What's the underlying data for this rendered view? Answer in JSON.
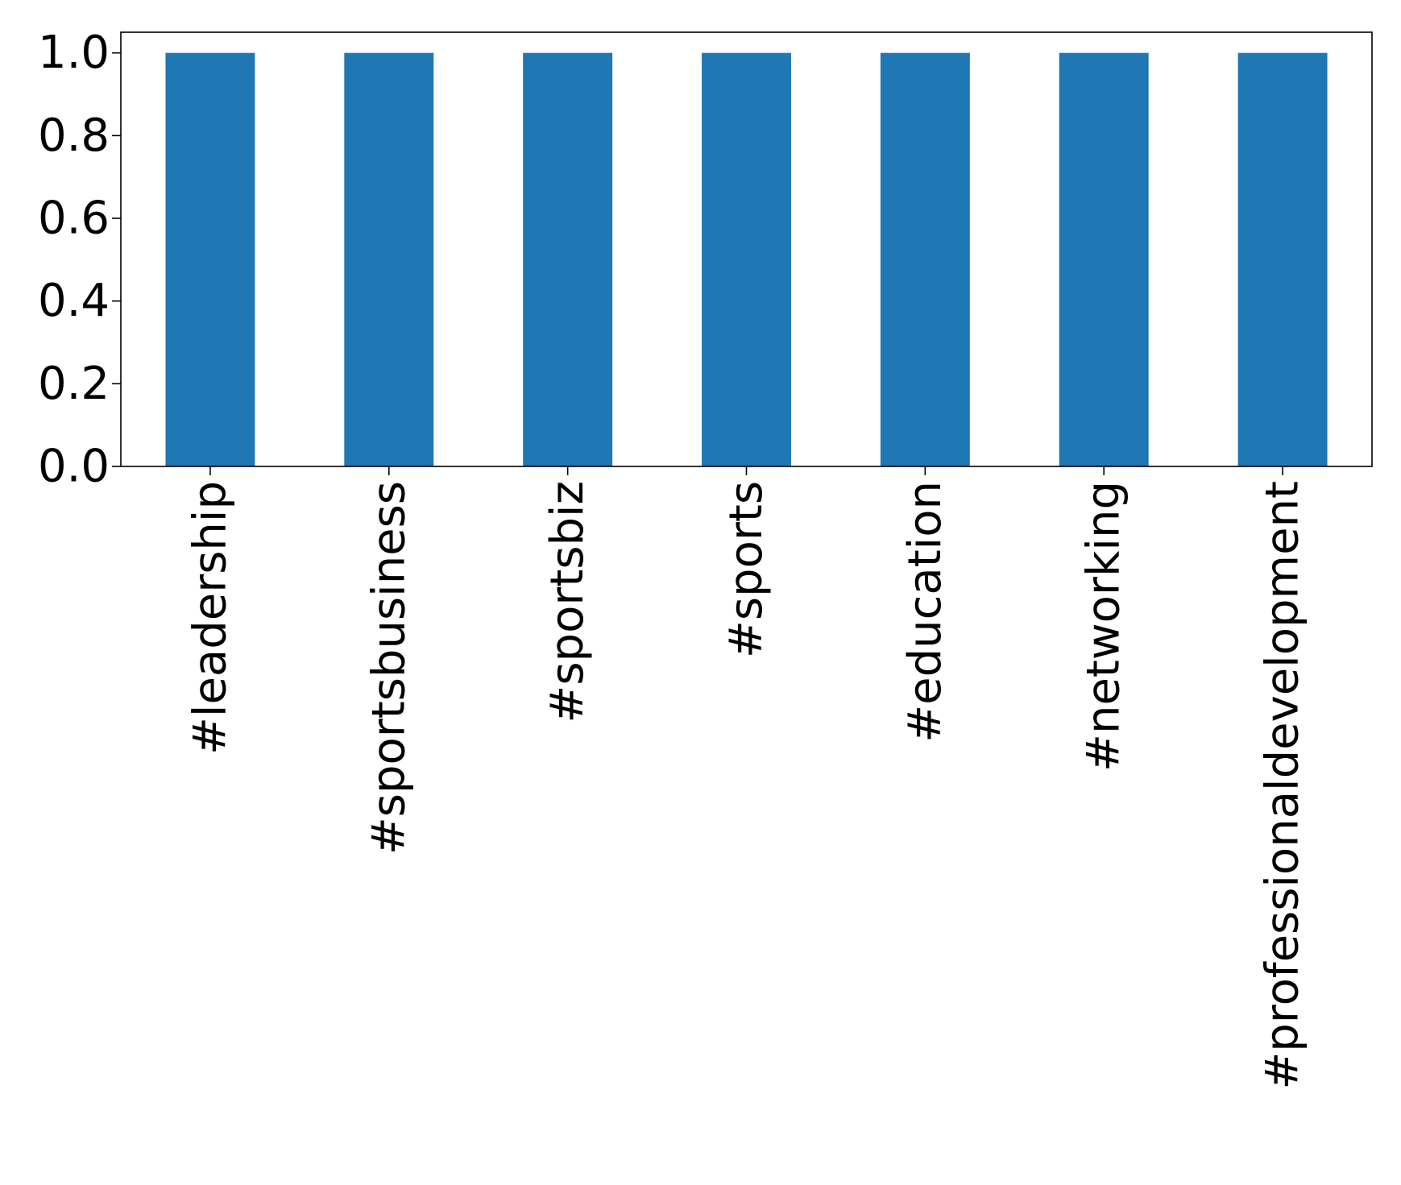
{
  "chart_data": {
    "type": "bar",
    "title": "",
    "xlabel": "",
    "ylabel": "",
    "categories": [
      "#leadership",
      "#sportsbusiness",
      "#sportsbiz",
      "#sports",
      "#education",
      "#networking",
      "#professionaldevelopment"
    ],
    "values": [
      1.0,
      1.0,
      1.0,
      1.0,
      1.0,
      1.0,
      1.0
    ],
    "ylim": [
      0,
      1.05
    ],
    "yticks": [
      0.0,
      0.2,
      0.4,
      0.6,
      0.8,
      1.0
    ],
    "ytick_labels": [
      "0.0",
      "0.2",
      "0.4",
      "0.6",
      "0.8",
      "1.0"
    ],
    "xtick_rotation": 90,
    "grid": false,
    "legend": "none",
    "colors": {
      "bar": "#1f77b4",
      "axes": "#000000",
      "background": "#ffffff"
    }
  }
}
